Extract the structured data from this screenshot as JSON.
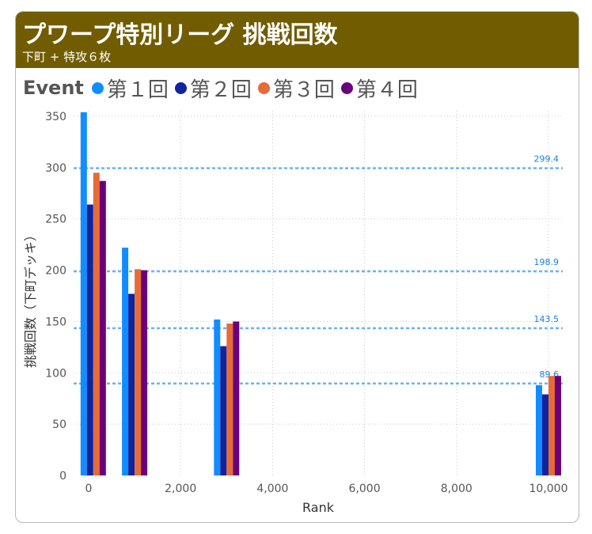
{
  "header": {
    "title": "プワープ特別リーグ 挑戦回数",
    "subtitle": "下町 + 特攻６枚",
    "background": "#715c00"
  },
  "legend": {
    "title": "Event",
    "items": [
      {
        "label": "第１回",
        "color": "#118dff"
      },
      {
        "label": "第２回",
        "color": "#12239e"
      },
      {
        "label": "第３回",
        "color": "#e66c37"
      },
      {
        "label": "第４回",
        "color": "#6b007b"
      }
    ]
  },
  "chart_data": {
    "type": "bar",
    "title": "",
    "xlabel": "Rank",
    "ylabel": "挑戦回数（下町デッキ）",
    "x": [
      100,
      1000,
      3000,
      10000
    ],
    "xlim": [
      -300,
      10000
    ],
    "ylim": [
      0,
      350
    ],
    "xticks": [
      "0",
      "2,000",
      "4,000",
      "6,000",
      "8,000",
      "10,000"
    ],
    "xtick_values": [
      0,
      2000,
      4000,
      6000,
      8000,
      10000
    ],
    "yticks": [
      0,
      50,
      100,
      150,
      200,
      250,
      300,
      350
    ],
    "grid": true,
    "series": [
      {
        "name": "第１回",
        "color": "#118dff",
        "values": [
          354,
          222,
          152,
          88
        ]
      },
      {
        "name": "第２回",
        "color": "#12239e",
        "values": [
          264,
          177,
          126,
          79
        ]
      },
      {
        "name": "第３回",
        "color": "#e66c37",
        "values": [
          295,
          201,
          148,
          97
        ]
      },
      {
        "name": "第４回",
        "color": "#6b007b",
        "values": [
          287,
          200,
          150,
          97
        ]
      }
    ],
    "reference_lines": [
      {
        "value": 299.4,
        "label": "299.4"
      },
      {
        "value": 198.9,
        "label": "198.9"
      },
      {
        "value": 143.5,
        "label": "143.5"
      },
      {
        "value": 89.6,
        "label": "89.6"
      }
    ],
    "reference_color": "#69b4f5"
  }
}
